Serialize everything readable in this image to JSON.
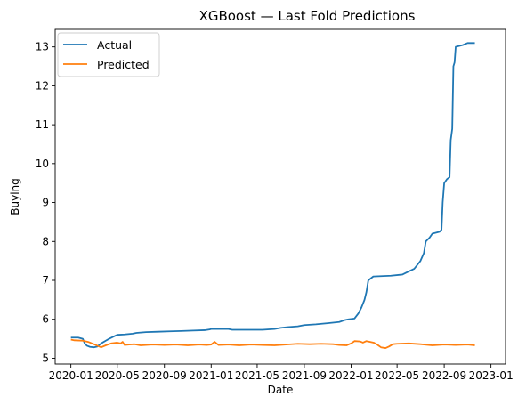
{
  "chart_data": {
    "type": "line",
    "title": "XGBoost — Last Fold Predictions",
    "xlabel": "Date",
    "ylabel": "Buying",
    "xlim": [
      "2019-11-21",
      "2023-02-08"
    ],
    "ylim": [
      4.85,
      13.45
    ],
    "x_ticks": [
      "2020-01-01",
      "2020-05-01",
      "2020-09-01",
      "2021-01-01",
      "2021-05-01",
      "2021-09-01",
      "2022-01-01",
      "2022-05-01",
      "2022-09-01",
      "2023-01-01"
    ],
    "x_tick_labels": [
      "2020-01",
      "2020-05",
      "2020-09",
      "2021-01",
      "2021-05",
      "2021-09",
      "2022-01",
      "2022-05",
      "2022-09",
      "2023-01"
    ],
    "y_ticks": [
      5,
      6,
      7,
      8,
      9,
      10,
      11,
      12,
      13
    ],
    "y_tick_labels": [
      "5",
      "6",
      "7",
      "8",
      "9",
      "10",
      "11",
      "12",
      "13"
    ],
    "legend": {
      "position": "top-left"
    },
    "grid": false,
    "series": [
      {
        "name": "Actual",
        "color": "#1f77b4",
        "points": [
          [
            "2020-01-01",
            5.53
          ],
          [
            "2020-01-20",
            5.53
          ],
          [
            "2020-02-01",
            5.5
          ],
          [
            "2020-02-06",
            5.38
          ],
          [
            "2020-02-12",
            5.32
          ],
          [
            "2020-02-20",
            5.29
          ],
          [
            "2020-03-01",
            5.28
          ],
          [
            "2020-03-10",
            5.3
          ],
          [
            "2020-03-20",
            5.38
          ],
          [
            "2020-04-01",
            5.45
          ],
          [
            "2020-04-10",
            5.5
          ],
          [
            "2020-04-20",
            5.55
          ],
          [
            "2020-05-01",
            5.6
          ],
          [
            "2020-05-20",
            5.61
          ],
          [
            "2020-06-10",
            5.63
          ],
          [
            "2020-06-20",
            5.65
          ],
          [
            "2020-07-15",
            5.67
          ],
          [
            "2020-08-15",
            5.68
          ],
          [
            "2020-09-15",
            5.69
          ],
          [
            "2020-10-15",
            5.7
          ],
          [
            "2020-11-15",
            5.71
          ],
          [
            "2020-12-15",
            5.72
          ],
          [
            "2020-12-28",
            5.74
          ],
          [
            "2021-01-01",
            5.75
          ],
          [
            "2021-02-15",
            5.75
          ],
          [
            "2021-02-25",
            5.73
          ],
          [
            "2021-04-01",
            5.73
          ],
          [
            "2021-05-15",
            5.73
          ],
          [
            "2021-06-15",
            5.75
          ],
          [
            "2021-07-01",
            5.78
          ],
          [
            "2021-07-20",
            5.8
          ],
          [
            "2021-08-15",
            5.82
          ],
          [
            "2021-09-01",
            5.85
          ],
          [
            "2021-10-01",
            5.87
          ],
          [
            "2021-11-01",
            5.9
          ],
          [
            "2021-12-01",
            5.93
          ],
          [
            "2021-12-15",
            5.98
          ],
          [
            "2021-12-25",
            6.0
          ],
          [
            "2022-01-10",
            6.02
          ],
          [
            "2022-01-20",
            6.15
          ],
          [
            "2022-01-28",
            6.3
          ],
          [
            "2022-02-05",
            6.5
          ],
          [
            "2022-02-10",
            6.7
          ],
          [
            "2022-02-15",
            7.0
          ],
          [
            "2022-02-28",
            7.1
          ],
          [
            "2022-04-15",
            7.12
          ],
          [
            "2022-05-15",
            7.15
          ],
          [
            "2022-05-25",
            7.2
          ],
          [
            "2022-06-15",
            7.3
          ],
          [
            "2022-07-01",
            7.5
          ],
          [
            "2022-07-10",
            7.7
          ],
          [
            "2022-07-15",
            8.0
          ],
          [
            "2022-07-25",
            8.1
          ],
          [
            "2022-08-01",
            8.2
          ],
          [
            "2022-08-20",
            8.25
          ],
          [
            "2022-08-25",
            8.3
          ],
          [
            "2022-08-28",
            9.0
          ],
          [
            "2022-09-01",
            9.5
          ],
          [
            "2022-09-08",
            9.6
          ],
          [
            "2022-09-15",
            9.65
          ],
          [
            "2022-09-18",
            10.6
          ],
          [
            "2022-09-22",
            10.9
          ],
          [
            "2022-09-25",
            12.5
          ],
          [
            "2022-09-28",
            12.6
          ],
          [
            "2022-10-01",
            13.0
          ],
          [
            "2022-10-20",
            13.05
          ],
          [
            "2022-11-01",
            13.1
          ],
          [
            "2022-11-20",
            13.1
          ]
        ]
      },
      {
        "name": "Predicted",
        "color": "#ff7f0e",
        "points": [
          [
            "2020-01-01",
            5.48
          ],
          [
            "2020-01-10",
            5.46
          ],
          [
            "2020-02-01",
            5.45
          ],
          [
            "2020-02-15",
            5.42
          ],
          [
            "2020-03-01",
            5.36
          ],
          [
            "2020-03-10",
            5.32
          ],
          [
            "2020-03-20",
            5.28
          ],
          [
            "2020-04-01",
            5.33
          ],
          [
            "2020-04-15",
            5.38
          ],
          [
            "2020-05-01",
            5.4
          ],
          [
            "2020-05-10",
            5.38
          ],
          [
            "2020-05-15",
            5.42
          ],
          [
            "2020-05-20",
            5.34
          ],
          [
            "2020-06-01",
            5.35
          ],
          [
            "2020-06-15",
            5.36
          ],
          [
            "2020-07-01",
            5.33
          ],
          [
            "2020-08-01",
            5.35
          ],
          [
            "2020-09-01",
            5.34
          ],
          [
            "2020-10-01",
            5.35
          ],
          [
            "2020-11-01",
            5.33
          ],
          [
            "2020-12-01",
            5.35
          ],
          [
            "2020-12-20",
            5.34
          ],
          [
            "2021-01-01",
            5.35
          ],
          [
            "2021-01-10",
            5.42
          ],
          [
            "2021-01-20",
            5.34
          ],
          [
            "2021-02-15",
            5.35
          ],
          [
            "2021-03-15",
            5.33
          ],
          [
            "2021-04-15",
            5.35
          ],
          [
            "2021-05-15",
            5.34
          ],
          [
            "2021-06-15",
            5.33
          ],
          [
            "2021-07-15",
            5.35
          ],
          [
            "2021-08-15",
            5.37
          ],
          [
            "2021-09-15",
            5.36
          ],
          [
            "2021-10-15",
            5.37
          ],
          [
            "2021-11-15",
            5.36
          ],
          [
            "2021-12-01",
            5.34
          ],
          [
            "2021-12-20",
            5.33
          ],
          [
            "2022-01-01",
            5.38
          ],
          [
            "2022-01-10",
            5.44
          ],
          [
            "2022-01-25",
            5.43
          ],
          [
            "2022-02-01",
            5.4
          ],
          [
            "2022-02-10",
            5.44
          ],
          [
            "2022-02-20",
            5.42
          ],
          [
            "2022-03-01",
            5.4
          ],
          [
            "2022-03-10",
            5.35
          ],
          [
            "2022-03-20",
            5.28
          ],
          [
            "2022-04-01",
            5.26
          ],
          [
            "2022-04-10",
            5.3
          ],
          [
            "2022-04-20",
            5.36
          ],
          [
            "2022-05-01",
            5.37
          ],
          [
            "2022-06-01",
            5.38
          ],
          [
            "2022-07-01",
            5.36
          ],
          [
            "2022-08-01",
            5.33
          ],
          [
            "2022-09-01",
            5.35
          ],
          [
            "2022-10-01",
            5.34
          ],
          [
            "2022-11-01",
            5.35
          ],
          [
            "2022-11-20",
            5.33
          ]
        ]
      }
    ]
  }
}
